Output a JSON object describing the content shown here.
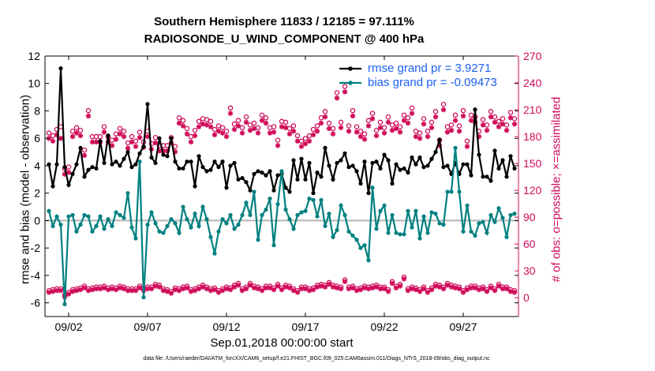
{
  "chart_data": {
    "type": "line",
    "title": "Southern Hemisphere 11833 / 12185 = 97.111%",
    "subtitle": "RADIOSONDE_U_WIND_COMPONENT @ 400 hPa",
    "xlabel": "Sep.01,2018 00:00:00 start",
    "ylabel": "rmse and bias (model - observation)",
    "y2label": "# of obs: o=possible; ×=assimilated",
    "footer": "data file: /Users/raeder/DAI/ATM_forcXX/CAM6_setup/f.e21.FHIST_BGC.f09_025.CAM6assim.011/Diags_NTrS_2018-09/obs_diag_output.nc",
    "xlim": [
      0.5,
      30.5
    ],
    "ylim": [
      -7,
      12
    ],
    "y2lim": [
      -21,
      270
    ],
    "x_ticks": [
      2,
      7,
      12,
      17,
      22,
      27
    ],
    "x_tick_labels": [
      "09/02",
      "09/07",
      "09/12",
      "09/17",
      "09/22",
      "09/27"
    ],
    "y_ticks": [
      -6,
      -4,
      -2,
      0,
      2,
      4,
      6,
      8,
      10,
      12
    ],
    "y2_ticks": [
      0,
      30,
      60,
      90,
      120,
      150,
      180,
      210,
      240,
      270
    ],
    "legend": [
      "rmse grand pr = 3.9271",
      "bias grand pr = -0.09473"
    ],
    "legend_position": "top-right",
    "colors": {
      "rmse": "#000000",
      "bias": "#008080",
      "obs": "#d00c5a",
      "zero": "#b4b4b4",
      "legend_text": "#1a5ff0"
    },
    "x": [
      0.75,
      1.0,
      1.25,
      1.5,
      1.75,
      2.0,
      2.25,
      2.5,
      2.75,
      3.0,
      3.25,
      3.5,
      3.75,
      4.0,
      4.25,
      4.5,
      4.75,
      5.0,
      5.25,
      5.5,
      5.75,
      6.0,
      6.25,
      6.5,
      6.75,
      7.0,
      7.25,
      7.5,
      7.75,
      8.0,
      8.25,
      8.5,
      8.75,
      9.0,
      9.25,
      9.5,
      9.75,
      10.0,
      10.25,
      10.5,
      10.75,
      11.0,
      11.25,
      11.5,
      11.75,
      12.0,
      12.25,
      12.5,
      12.75,
      13.0,
      13.25,
      13.5,
      13.75,
      14.0,
      14.25,
      14.5,
      14.75,
      15.0,
      15.25,
      15.5,
      15.75,
      16.0,
      16.25,
      16.5,
      16.75,
      17.0,
      17.25,
      17.5,
      17.75,
      18.0,
      18.25,
      18.5,
      18.75,
      19.0,
      19.25,
      19.5,
      19.75,
      20.0,
      20.25,
      20.5,
      20.75,
      21.0,
      21.25,
      21.5,
      21.75,
      22.0,
      22.25,
      22.5,
      22.75,
      23.0,
      23.25,
      23.5,
      23.75,
      24.0,
      24.25,
      24.5,
      24.75,
      25.0,
      25.25,
      25.5,
      25.75,
      26.0,
      26.25,
      26.5,
      26.75,
      27.0,
      27.25,
      27.5,
      27.75,
      28.0,
      28.25,
      28.5,
      28.75,
      29.0,
      29.25,
      29.5,
      29.75,
      30.0,
      30.25
    ],
    "series": [
      {
        "name": "rmse",
        "values": [
          4.1,
          2.5,
          4.1,
          11.1,
          3.9,
          2.6,
          3.4,
          4.1,
          5.3,
          3.2,
          3.7,
          3.9,
          3.8,
          5.8,
          4.2,
          6.2,
          4.1,
          4.3,
          4.0,
          4.5,
          5.0,
          3.9,
          4.1,
          4.9,
          5.4,
          8.5,
          4.6,
          4.2,
          6.0,
          4.8,
          4.7,
          6.0,
          4.3,
          3.8,
          3.8,
          4.3,
          4.3,
          2.5,
          4.7,
          3.9,
          3.6,
          3.7,
          4.3,
          3.9,
          4.3,
          2.4,
          4.0,
          4.2,
          3.0,
          3.1,
          2.8,
          2.2,
          3.4,
          3.6,
          3.5,
          3.3,
          3.6,
          2.2,
          3.3,
          3.4,
          2.4,
          2.1,
          4.4,
          3.0,
          4.5,
          3.0,
          4.2,
          2.0,
          3.5,
          3.2,
          5.3,
          4.0,
          3.0,
          4.2,
          4.4,
          4.9,
          3.9,
          4.0,
          3.6,
          2.7,
          4.3,
          2.0,
          4.2,
          4.3,
          3.8,
          4.8,
          4.4,
          2.7,
          4.1,
          3.7,
          3.8,
          3.5,
          4.6,
          4.1,
          4.6,
          3.9,
          4.0,
          4.5,
          5.0,
          5.9,
          3.9,
          4.0,
          3.4,
          4.2,
          3.4,
          4.1,
          4.1,
          3.3,
          8.1,
          4.8,
          3.2,
          3.2,
          2.9,
          5.1,
          3.8,
          4.4,
          3.2,
          4.7,
          3.8
        ],
        "marker": "circle"
      },
      {
        "name": "bias",
        "values": [
          0.7,
          -0.4,
          0.3,
          -0.3,
          -6.1,
          0.3,
          0.4,
          -0.8,
          -0.3,
          0.4,
          0.3,
          -0.8,
          -0.4,
          0.3,
          -0.6,
          0.1,
          -0.4,
          0.6,
          0.4,
          0.2,
          2.0,
          -0.5,
          -1.3,
          4.3,
          -5.6,
          -0.3,
          0.6,
          -0.2,
          -0.8,
          -0.9,
          -0.4,
          0.1,
          -0.2,
          -0.9,
          1.0,
          0.1,
          -0.5,
          0.5,
          -0.4,
          1.0,
          0.1,
          -1.2,
          -2.4,
          -0.8,
          0.1,
          -0.2,
          0.4,
          -0.6,
          -0.3,
          0.4,
          1.3,
          0.4,
          2.1,
          -1.4,
          0.4,
          0.8,
          1.6,
          -1.8,
          1.2,
          3.6,
          0.8,
          0.1,
          -0.6,
          0.4,
          0.6,
          0.7,
          1.6,
          1.5,
          0.3,
          1.5,
          -0.4,
          0.5,
          -1.2,
          -0.7,
          1.1,
          0.4,
          -0.8,
          -1.1,
          -1.4,
          -2.0,
          -1.8,
          -2.9,
          2.4,
          -0.6,
          0.7,
          1.1,
          -0.9,
          0.4,
          -0.9,
          -1.0,
          -1.0,
          0.7,
          -0.5,
          0.7,
          -1.3,
          0.3,
          -0.9,
          0.6,
          0.5,
          -0.2,
          -0.3,
          2.1,
          2.1,
          5.3,
          2.1,
          -0.8,
          1.1,
          -0.8,
          -1.1,
          -0.2,
          -0.1,
          -0.9,
          0.4,
          -0.1,
          0.9,
          0.2,
          -1.2,
          0.4,
          0.5
        ],
        "marker": "circle"
      },
      {
        "name": "obs_possible_high",
        "axis": "right",
        "marker": "o",
        "values": [
          184,
          181,
          188,
          191,
          144,
          146,
          186,
          190,
          187,
          165,
          209,
          180,
          180,
          180,
          191,
          180,
          176,
          183,
          189,
          186,
          173,
          180,
          175,
          185,
          174,
          186,
          172,
          179,
          170,
          170,
          170,
          179,
          169,
          201,
          198,
          189,
          180,
          187,
          197,
          200,
          199,
          197,
          188,
          192,
          190,
          186,
          212,
          194,
          198,
          190,
          202,
          193,
          195,
          190,
          204,
          201,
          190,
          191,
          176,
          197,
          196,
          189,
          192,
          181,
          175,
          178,
          181,
          188,
          192,
          201,
          208,
          195,
          189,
          229,
          196,
          236,
          192,
          209,
          191,
          186,
          183,
          198,
          206,
          187,
          196,
          190,
          202,
          193,
          195,
          191,
          204,
          201,
          212,
          186,
          184,
          200,
          186,
          196,
          208,
          176,
          216,
          191,
          193,
          204,
          192,
          209,
          175,
          204,
          202,
          186,
          199,
          193,
          208,
          202,
          197,
          200,
          193,
          207,
          200
        ]
      },
      {
        "name": "obs_assimilated_high",
        "axis": "right",
        "marker": "*",
        "values": [
          178,
          175,
          182,
          178,
          138,
          140,
          180,
          184,
          181,
          159,
          203,
          174,
          174,
          174,
          185,
          174,
          170,
          177,
          183,
          180,
          167,
          174,
          169,
          179,
          168,
          180,
          166,
          173,
          164,
          164,
          164,
          173,
          163,
          195,
          192,
          183,
          174,
          181,
          191,
          194,
          193,
          191,
          182,
          186,
          184,
          180,
          206,
          188,
          192,
          184,
          196,
          187,
          189,
          184,
          198,
          195,
          184,
          185,
          170,
          191,
          190,
          183,
          186,
          175,
          169,
          172,
          175,
          182,
          186,
          195,
          202,
          189,
          183,
          223,
          190,
          230,
          186,
          203,
          185,
          180,
          177,
          192,
          200,
          181,
          190,
          184,
          196,
          187,
          189,
          185,
          198,
          195,
          206,
          180,
          178,
          194,
          180,
          190,
          202,
          170,
          210,
          185,
          187,
          198,
          186,
          203,
          169,
          198,
          196,
          180,
          193,
          187,
          202,
          196,
          191,
          194,
          187,
          201,
          194
        ]
      },
      {
        "name": "obs_possible_low",
        "axis": "right",
        "marker": "o",
        "values": [
          8,
          9,
          10,
          10,
          3,
          6,
          9,
          10,
          11,
          13,
          10,
          11,
          12,
          12,
          13,
          11,
          12,
          11,
          13,
          12,
          10,
          10,
          10,
          13,
          10,
          12,
          12,
          15,
          14,
          10,
          9,
          7,
          11,
          10,
          12,
          13,
          9,
          10,
          12,
          14,
          12,
          10,
          11,
          8,
          10,
          12,
          11,
          14,
          16,
          10,
          12,
          16,
          13,
          12,
          10,
          13,
          13,
          11,
          15,
          11,
          14,
          13,
          10,
          8,
          12,
          12,
          10,
          11,
          14,
          15,
          14,
          17,
          14,
          13,
          12,
          20,
          12,
          13,
          10,
          11,
          13,
          12,
          13,
          14,
          12,
          12,
          9,
          18,
          13,
          15,
          23,
          10,
          12,
          11,
          9,
          12,
          8,
          11,
          15,
          14,
          12,
          16,
          14,
          13,
          12,
          8,
          11,
          13,
          13,
          11,
          12,
          9,
          13,
          10,
          15,
          12,
          12,
          9,
          8
        ]
      },
      {
        "name": "obs_assimilated_low",
        "axis": "right",
        "marker": "*",
        "values": [
          6,
          7,
          8,
          8,
          1,
          4,
          7,
          8,
          9,
          11,
          8,
          9,
          10,
          10,
          11,
          9,
          10,
          9,
          11,
          10,
          8,
          8,
          8,
          11,
          8,
          10,
          10,
          13,
          12,
          8,
          7,
          5,
          9,
          8,
          10,
          11,
          7,
          8,
          10,
          12,
          10,
          8,
          9,
          6,
          8,
          10,
          9,
          12,
          14,
          8,
          10,
          14,
          11,
          10,
          8,
          11,
          11,
          9,
          13,
          9,
          12,
          11,
          8,
          6,
          10,
          10,
          8,
          9,
          12,
          13,
          12,
          15,
          12,
          11,
          10,
          18,
          10,
          11,
          8,
          9,
          11,
          10,
          11,
          12,
          10,
          10,
          7,
          16,
          11,
          13,
          21,
          8,
          10,
          9,
          7,
          10,
          6,
          9,
          13,
          12,
          10,
          14,
          12,
          11,
          10,
          6,
          9,
          11,
          11,
          9,
          10,
          7,
          11,
          8,
          13,
          10,
          10,
          7,
          6
        ]
      }
    ]
  }
}
